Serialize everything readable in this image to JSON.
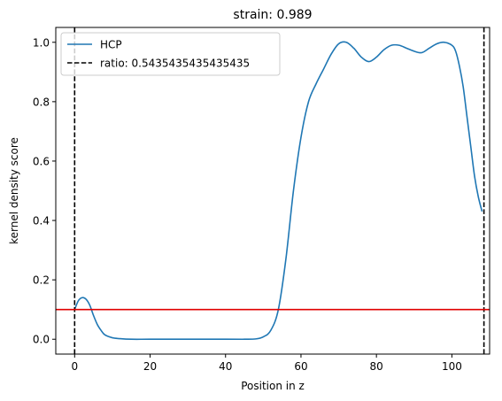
{
  "chart_data": {
    "type": "line",
    "title": "strain: 0.989",
    "xlabel": "Position in z",
    "ylabel": "kernel density score",
    "xlim": [
      -5,
      110
    ],
    "ylim": [
      -0.05,
      1.05
    ],
    "xticks": [
      0,
      20,
      40,
      60,
      80,
      100
    ],
    "yticks": [
      0.0,
      0.2,
      0.4,
      0.6,
      0.8,
      1.0
    ],
    "xtick_labels": [
      "0",
      "20",
      "40",
      "60",
      "80",
      "100"
    ],
    "ytick_labels": [
      "0.0",
      "0.2",
      "0.4",
      "0.6",
      "0.8",
      "1.0"
    ],
    "series": [
      {
        "name": "HCP",
        "color": "#1f77b4",
        "style": "solid",
        "x": [
          0,
          1,
          2,
          3,
          4,
          5,
          6,
          7,
          8,
          10,
          12,
          15,
          20,
          30,
          40,
          45,
          48,
          50,
          52,
          54,
          56,
          58,
          60,
          62,
          64,
          66,
          68,
          70,
          72,
          74,
          76,
          78,
          80,
          82,
          84,
          86,
          88,
          90,
          92,
          94,
          96,
          98,
          100,
          101,
          102,
          103,
          104,
          105,
          106,
          107,
          108
        ],
        "y": [
          0.1,
          0.13,
          0.14,
          0.135,
          0.115,
          0.08,
          0.05,
          0.03,
          0.015,
          0.005,
          0.002,
          0.0,
          0.0,
          0.0,
          0.0,
          0.0,
          0.001,
          0.008,
          0.03,
          0.1,
          0.27,
          0.5,
          0.68,
          0.8,
          0.86,
          0.91,
          0.96,
          0.995,
          1.0,
          0.98,
          0.95,
          0.935,
          0.95,
          0.975,
          0.99,
          0.99,
          0.98,
          0.97,
          0.965,
          0.98,
          0.995,
          1.0,
          0.99,
          0.97,
          0.92,
          0.85,
          0.75,
          0.65,
          0.55,
          0.48,
          0.43
        ]
      }
    ],
    "vlines": [
      {
        "x": 0,
        "color": "#000000",
        "style": "dashed"
      },
      {
        "x": 108.5,
        "color": "#000000",
        "style": "dashed"
      }
    ],
    "hlines": [
      {
        "y": 0.1,
        "color": "#e00000",
        "style": "solid"
      }
    ],
    "legend": {
      "placement": "upper-left",
      "entries": [
        {
          "label": "HCP",
          "color": "#1f77b4",
          "style": "solid"
        },
        {
          "label": "ratio: 0.5435435435435435",
          "color": "#000000",
          "style": "dashed"
        }
      ]
    },
    "grid": false
  }
}
